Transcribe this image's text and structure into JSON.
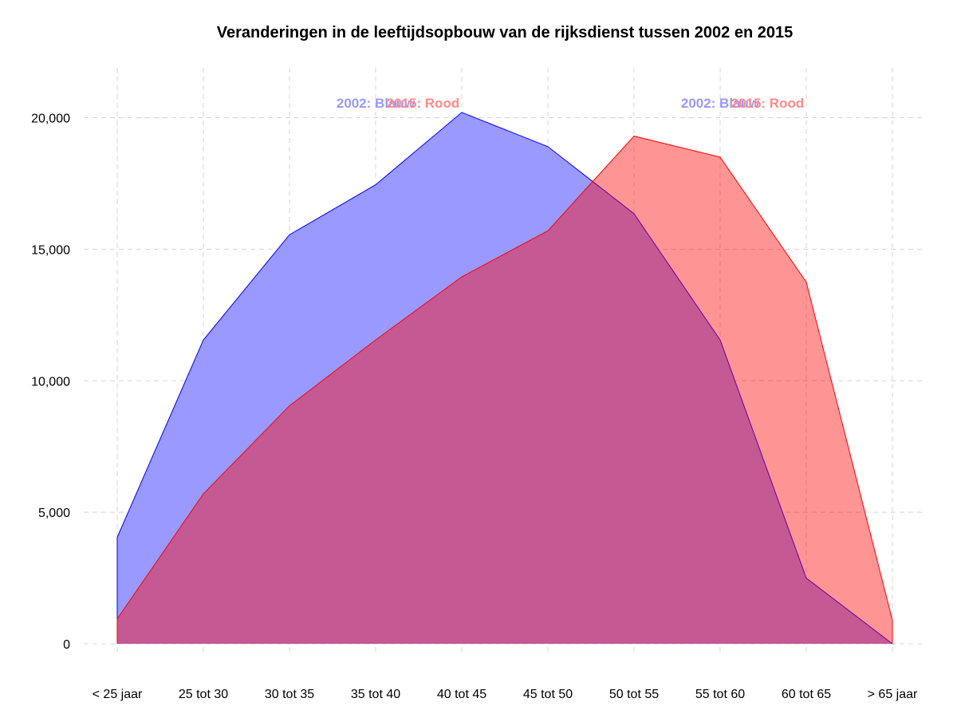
{
  "chart_data": {
    "type": "area",
    "title": "Veranderingen in de leeftijdsopbouw van de rijksdienst tussen 2002 en 2015",
    "xlabel": "",
    "ylabel": "",
    "categories": [
      "< 25 jaar",
      "25 tot 30",
      "30 tot 35",
      "35 tot 40",
      "40 tot 45",
      "45 tot 50",
      "50 tot 55",
      "55 tot 60",
      "60 tot 65",
      "> 65 jaar"
    ],
    "ylim": [
      0,
      20000
    ],
    "yticks": [
      0,
      5000,
      10000,
      15000,
      20000
    ],
    "ytick_labels": [
      "0",
      "5,000",
      "10,000",
      "15,000",
      "20,000"
    ],
    "grid": true,
    "series": [
      {
        "key": "2002",
        "color": "#0000ff",
        "fill": "#9999ff",
        "values": [
          4050,
          11550,
          15550,
          17450,
          20200,
          18900,
          16350,
          11550,
          2500,
          0
        ]
      },
      {
        "key": "2015",
        "color": "#ff0000",
        "fill": "#ff0000",
        "values": [
          950,
          5700,
          9050,
          11550,
          13950,
          15700,
          19300,
          18500,
          13750,
          900
        ]
      }
    ],
    "annotations": [
      {
        "text": "2002: Blauw",
        "color": "#9999ff",
        "x_pos": 3.0,
        "y": 20500
      },
      {
        "text": "2015: Rood",
        "color": "#ff8888",
        "x_pos": 3.55,
        "y": 20500
      },
      {
        "text": "2002: Blauw",
        "color": "#9999ff",
        "x_pos": 7.0,
        "y": 20500
      },
      {
        "text": "2015: Rood",
        "color": "#ff8888",
        "x_pos": 7.55,
        "y": 20500
      }
    ]
  }
}
